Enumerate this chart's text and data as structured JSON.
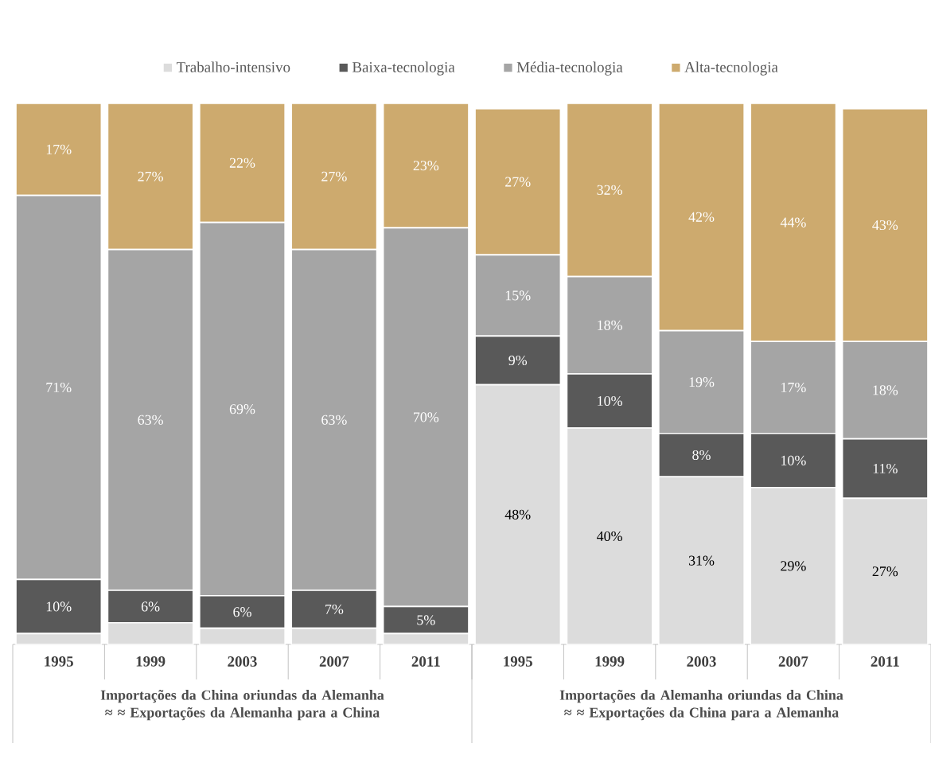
{
  "chart_data": {
    "type": "bar",
    "stacked": true,
    "legend": "top",
    "tick_labels": "x",
    "categories": [
      "1995",
      "1999",
      "2003",
      "2007",
      "2011",
      "1995",
      "1999",
      "2003",
      "2007",
      "2011"
    ],
    "series": [
      {
        "name": "Trabalho-intensivo",
        "color": "#dcdcdc",
        "values": [
          2,
          4,
          3,
          3,
          2,
          48,
          40,
          31,
          29,
          27
        ],
        "value_labels": [
          null,
          null,
          null,
          null,
          null,
          "48%",
          "40%",
          "31%",
          "29%",
          "27%"
        ]
      },
      {
        "name": "Baixa-tecnologia",
        "color": "#595959",
        "values": [
          10,
          6,
          6,
          7,
          5,
          9,
          10,
          8,
          10,
          11
        ],
        "value_labels": [
          "10%",
          "6%",
          "6%",
          "7%",
          "5%",
          "9%",
          "10%",
          "8%",
          "10%",
          "11%"
        ]
      },
      {
        "name": "Média-tecnologia",
        "color": "#a5a5a5",
        "values": [
          71,
          63,
          69,
          63,
          70,
          15,
          18,
          19,
          17,
          18
        ],
        "value_labels": [
          "71%",
          "63%",
          "69%",
          "63%",
          "70%",
          "15%",
          "18%",
          "19%",
          "17%",
          "18%"
        ]
      },
      {
        "name": "Alta-tecnologia",
        "color": "#cdaa6e",
        "values": [
          17,
          27,
          22,
          27,
          23,
          27,
          32,
          42,
          44,
          43
        ],
        "value_labels": [
          "17%",
          "27%",
          "22%",
          "27%",
          "23%",
          "27%",
          "32%",
          "42%",
          "44%",
          "43%"
        ]
      }
    ],
    "annotations": [
      "Importações da China oriundas da Alemanha ≈ ≈ Exportações da Alemanha para a China",
      "Importações da Alemanha oriundas da China ≈ ≈ Exportações da China para a Alemanha"
    ]
  }
}
